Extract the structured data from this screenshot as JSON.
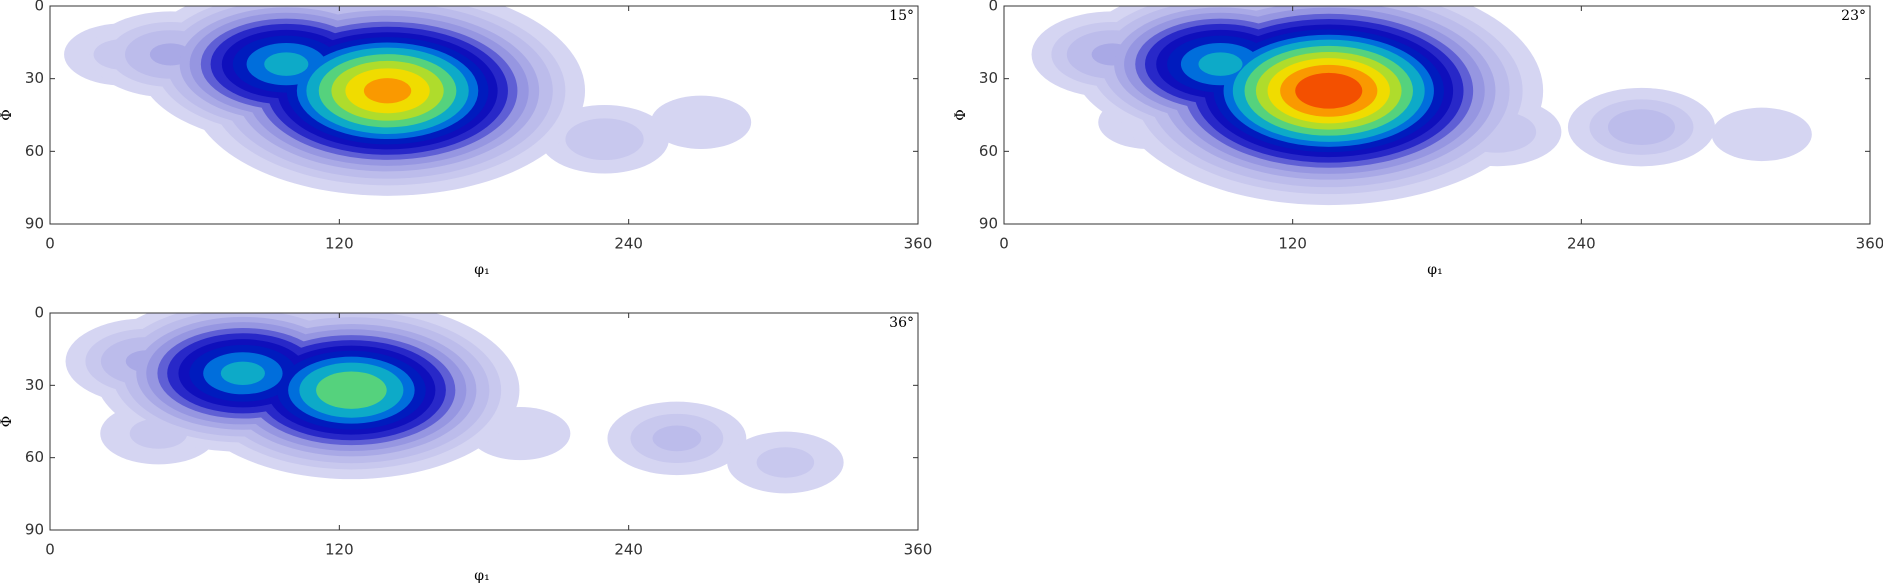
{
  "chart_data": [
    {
      "type": "contour",
      "annotation": "15°",
      "xlabel": "φ₁",
      "ylabel": "Φ",
      "xlim": [
        0,
        360
      ],
      "ylim": [
        0,
        90
      ],
      "invert_y": true,
      "xticks": [
        0,
        120,
        240,
        360
      ],
      "yticks": [
        0,
        30,
        60,
        90
      ],
      "peaks": [
        {
          "x": 30,
          "y": 20,
          "value": 0.05
        },
        {
          "x": 50,
          "y": 20,
          "value": 0.1
        },
        {
          "x": 230,
          "y": 55,
          "value": 0.06
        },
        {
          "x": 270,
          "y": 48,
          "value": 0.04
        },
        {
          "x": 98,
          "y": 24,
          "value": 0.45
        },
        {
          "x": 140,
          "y": 35,
          "value": 0.78
        }
      ]
    },
    {
      "type": "contour",
      "annotation": "23°",
      "xlabel": "φ₁",
      "ylabel": "Φ",
      "xlim": [
        0,
        360
      ],
      "ylim": [
        0,
        90
      ],
      "invert_y": true,
      "xticks": [
        0,
        120,
        240,
        360
      ],
      "yticks": [
        0,
        30,
        60,
        90
      ],
      "peaks": [
        {
          "x": 45,
          "y": 20,
          "value": 0.1
        },
        {
          "x": 60,
          "y": 48,
          "value": 0.04
        },
        {
          "x": 205,
          "y": 52,
          "value": 0.06
        },
        {
          "x": 265,
          "y": 50,
          "value": 0.08
        },
        {
          "x": 315,
          "y": 53,
          "value": 0.04
        },
        {
          "x": 90,
          "y": 24,
          "value": 0.45
        },
        {
          "x": 135,
          "y": 35,
          "value": 0.9
        }
      ]
    },
    {
      "type": "contour",
      "annotation": "36°",
      "xlabel": "φ₁",
      "ylabel": "Φ",
      "xlim": [
        0,
        360
      ],
      "ylim": [
        0,
        90
      ],
      "invert_y": true,
      "xticks": [
        0,
        120,
        240,
        360
      ],
      "yticks": [
        0,
        30,
        60,
        90
      ],
      "peaks": [
        {
          "x": 40,
          "y": 20,
          "value": 0.1
        },
        {
          "x": 45,
          "y": 50,
          "value": 0.05
        },
        {
          "x": 195,
          "y": 50,
          "value": 0.04
        },
        {
          "x": 260,
          "y": 52,
          "value": 0.07
        },
        {
          "x": 305,
          "y": 62,
          "value": 0.05
        },
        {
          "x": 80,
          "y": 25,
          "value": 0.45
        },
        {
          "x": 125,
          "y": 32,
          "value": 0.58
        }
      ]
    }
  ]
}
